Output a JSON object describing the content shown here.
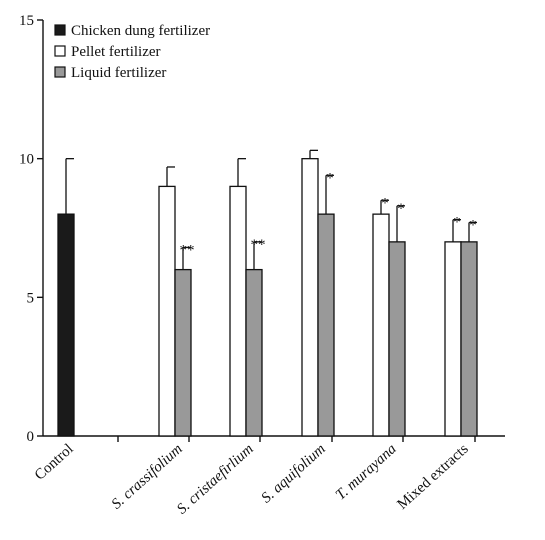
{
  "chart_data": {
    "type": "bar",
    "title": "",
    "xlabel": "",
    "ylabel": "",
    "ylim": [
      0,
      15
    ],
    "yticks": [
      "0",
      "5",
      "10",
      "15"
    ],
    "legend_position": "top-left",
    "categories": [
      {
        "label": "Control",
        "italic": false
      },
      {
        "label": "S. crassifolium",
        "italic": true
      },
      {
        "label": "S. cristaefirlium",
        "italic": true
      },
      {
        "label": "S. aquifolium",
        "italic": true
      },
      {
        "label": "T. murayana",
        "italic": true
      },
      {
        "label": "Mixed extracts",
        "italic": false
      }
    ],
    "series": [
      {
        "name": "Chicken dung fertilizer",
        "color": "#1a1a1a",
        "values": [
          8,
          null,
          null,
          null,
          null,
          null
        ],
        "errors": [
          2,
          null,
          null,
          null,
          null,
          null
        ],
        "significance": [
          "",
          "",
          "",
          "",
          "",
          ""
        ]
      },
      {
        "name": "Pellet fertilizer",
        "color": "#ffffff",
        "values": [
          null,
          9,
          9,
          10,
          8,
          7
        ],
        "errors": [
          null,
          0.7,
          1.0,
          0.3,
          0.5,
          0.8
        ],
        "significance": [
          "",
          "",
          "",
          "",
          "*",
          "*"
        ]
      },
      {
        "name": "Liquid fertilizer",
        "color": "#999999",
        "values": [
          null,
          6,
          6,
          8,
          7,
          7
        ],
        "errors": [
          null,
          0.8,
          1.0,
          1.4,
          1.3,
          0.7
        ],
        "significance": [
          "",
          "**",
          "**",
          "*",
          "*",
          "*"
        ]
      }
    ]
  }
}
